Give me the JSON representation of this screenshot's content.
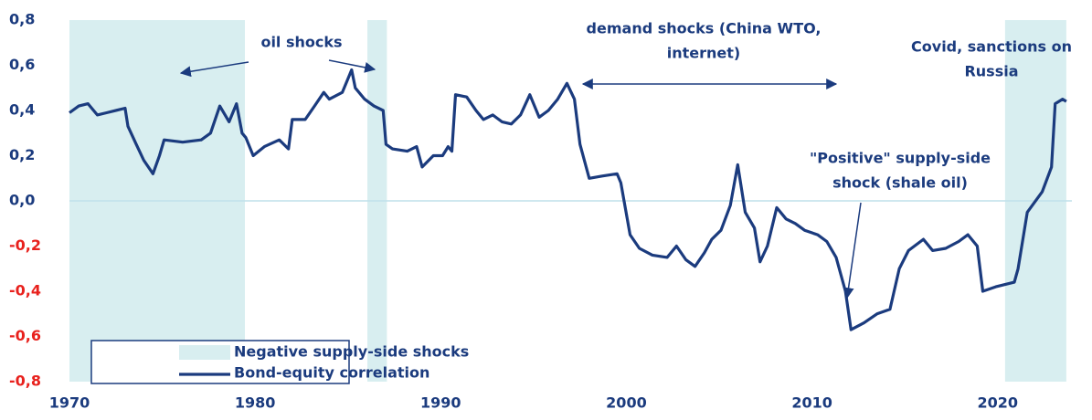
{
  "chart_data": {
    "type": "line",
    "x": [
      1970,
      1970.5,
      1971,
      1971.5,
      1972,
      1973,
      1973.15,
      1973.6,
      1974,
      1974.5,
      1974.85,
      1975.1,
      1976.1,
      1977.1,
      1977.6,
      1978.1,
      1978.6,
      1979,
      1979.3,
      1979.5,
      1979.9,
      1980.5,
      1981.3,
      1981.8,
      1982,
      1982.7,
      1983.2,
      1983.7,
      1984,
      1984.7,
      1985.2,
      1985.4,
      1985.9,
      1986.4,
      1986.9,
      1987.05,
      1987.4,
      1988.2,
      1988.7,
      1989,
      1989.6,
      1990.1,
      1990.4,
      1990.6,
      1990.8,
      1991.4,
      1991.9,
      1992.3,
      1992.8,
      1993.3,
      1993.8,
      1994.3,
      1994.8,
      1995.3,
      1995.8,
      1996.3,
      1996.8,
      1997.2,
      1997.5,
      1998,
      1998.7,
      1999.5,
      1999.7,
      2000.2,
      2000.7,
      2001.4,
      2002.2,
      2002.7,
      2003.2,
      2003.7,
      2004.2,
      2004.6,
      2005.1,
      2005.6,
      2006,
      2006.4,
      2006.9,
      2007.2,
      2007.6,
      2008.1,
      2008.6,
      2009.1,
      2009.6,
      2010.3,
      2010.8,
      2011.3,
      2011.8,
      2012.1,
      2012.8,
      2013.5,
      2014.2,
      2014.7,
      2015.2,
      2016,
      2016.5,
      2017.2,
      2017.9,
      2018.4,
      2018.9,
      2019.2,
      2019.9,
      2020.9,
      2021.1,
      2021.6,
      2022.4,
      2022.9,
      2023.1,
      2023.5,
      2023.7
    ],
    "series": [
      {
        "name": "Bond-equity correlation",
        "color": "#1b3b7e",
        "values": [
          0.39,
          0.42,
          0.43,
          0.38,
          0.39,
          0.41,
          0.33,
          0.25,
          0.18,
          0.12,
          0.2,
          0.27,
          0.26,
          0.27,
          0.3,
          0.42,
          0.35,
          0.43,
          0.3,
          0.28,
          0.2,
          0.24,
          0.27,
          0.23,
          0.36,
          0.36,
          0.42,
          0.48,
          0.45,
          0.48,
          0.58,
          0.5,
          0.45,
          0.42,
          0.4,
          0.25,
          0.23,
          0.22,
          0.24,
          0.15,
          0.2,
          0.2,
          0.24,
          0.22,
          0.47,
          0.46,
          0.4,
          0.36,
          0.38,
          0.35,
          0.34,
          0.38,
          0.47,
          0.37,
          0.4,
          0.45,
          0.52,
          0.45,
          0.25,
          0.1,
          0.11,
          0.12,
          0.08,
          -0.15,
          -0.21,
          -0.24,
          -0.25,
          -0.2,
          -0.26,
          -0.29,
          -0.23,
          -0.17,
          -0.13,
          -0.02,
          0.16,
          -0.05,
          -0.12,
          -0.27,
          -0.2,
          -0.03,
          -0.08,
          -0.1,
          -0.13,
          -0.15,
          -0.18,
          -0.25,
          -0.4,
          -0.57,
          -0.54,
          -0.5,
          -0.48,
          -0.3,
          -0.22,
          -0.17,
          -0.22,
          -0.21,
          -0.18,
          -0.15,
          -0.2,
          -0.4,
          -0.38,
          -0.36,
          -0.3,
          -0.05,
          0.04,
          0.15,
          0.43,
          0.45,
          0.44
        ]
      }
    ],
    "shaded": {
      "name": "Negative supply-side shocks",
      "color": "#d8eef0",
      "ranges": [
        [
          1970,
          1979.45
        ],
        [
          1986.05,
          1987.1
        ],
        [
          2020.4,
          2023.7
        ]
      ]
    },
    "xlim": [
      1970,
      2024
    ],
    "ylim": [
      -0.8,
      0.8
    ],
    "xticks": [
      1970,
      1980,
      1990,
      2000,
      2010,
      2020
    ],
    "yticks": [
      {
        "value": -0.8,
        "label": "-0,8"
      },
      {
        "value": -0.6,
        "label": "-0,6"
      },
      {
        "value": -0.4,
        "label": "-0,4"
      },
      {
        "value": -0.2,
        "label": "-0,2"
      },
      {
        "value": 0,
        "label": "0,0"
      },
      {
        "value": 0.2,
        "label": "0,2"
      },
      {
        "value": 0.4,
        "label": "0,4"
      },
      {
        "value": 0.6,
        "label": "0,6"
      },
      {
        "value": 0.8,
        "label": "0,8"
      }
    ],
    "annotations": [
      [
        "oil shocks"
      ],
      [
        "demand shocks (China WTO,",
        "internet)"
      ],
      [
        "\"Positive\" supply-side",
        "shock (shale oil)"
      ],
      [
        "Covid, sanctions on",
        "Russia"
      ]
    ]
  }
}
